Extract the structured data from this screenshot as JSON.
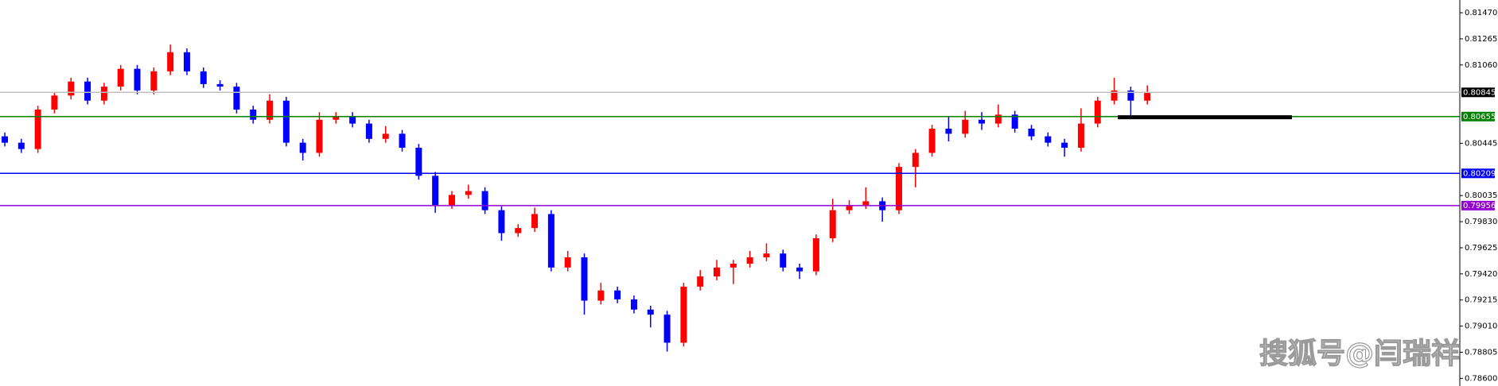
{
  "chart_data": {
    "type": "candlestick",
    "open": [
      0.805,
      0.8045,
      0.804,
      0.8071,
      0.8082,
      0.8093,
      0.8078,
      0.8089,
      0.8103,
      0.8086,
      0.8101,
      0.8116,
      0.8101,
      0.8091,
      0.8089,
      0.8071,
      0.8063,
      0.8078,
      0.8045,
      0.8037,
      0.8063,
      0.8066,
      0.806,
      0.8048,
      0.8052,
      0.8041,
      0.8019,
      0.7996,
      0.8004,
      0.8007,
      0.7992,
      0.7974,
      0.7978,
      0.7989,
      0.7947,
      0.7955,
      0.7921,
      0.7929,
      0.7922,
      0.7914,
      0.791,
      0.7888,
      0.7932,
      0.794,
      0.7947,
      0.795,
      0.7955,
      0.7958,
      0.7947,
      0.7944,
      0.797,
      0.7992,
      0.7996,
      0.7999,
      0.7992,
      0.8026,
      0.8037,
      0.8056,
      0.8052,
      0.8063,
      0.806,
      0.8067,
      0.8056,
      0.805,
      0.8045,
      0.8041,
      0.806,
      0.8078,
      0.8086,
      0.8078
    ],
    "high": [
      0.8053,
      0.8048,
      0.8074,
      0.8085,
      0.8096,
      0.8096,
      0.8092,
      0.8106,
      0.8106,
      0.8104,
      0.8122,
      0.8119,
      0.8104,
      0.8094,
      0.8092,
      0.8074,
      0.8083,
      0.8081,
      0.8048,
      0.8069,
      0.8069,
      0.8069,
      0.8063,
      0.8058,
      0.8055,
      0.8044,
      0.8022,
      0.8007,
      0.8012,
      0.801,
      0.7995,
      0.7981,
      0.7994,
      0.7992,
      0.796,
      0.7958,
      0.7935,
      0.7932,
      0.7925,
      0.7917,
      0.7913,
      0.7935,
      0.7945,
      0.7953,
      0.7953,
      0.796,
      0.7966,
      0.7961,
      0.795,
      0.7973,
      0.8001,
      0.8,
      0.801,
      0.8002,
      0.8029,
      0.804,
      0.8059,
      0.8066,
      0.807,
      0.8069,
      0.8075,
      0.807,
      0.8059,
      0.8053,
      0.8048,
      0.8072,
      0.8081,
      0.8096,
      0.8089,
      0.809
    ],
    "low": [
      0.8042,
      0.8037,
      0.8037,
      0.8068,
      0.8079,
      0.8075,
      0.8075,
      0.8086,
      0.8083,
      0.8083,
      0.8098,
      0.8098,
      0.8088,
      0.8086,
      0.8068,
      0.806,
      0.806,
      0.8042,
      0.8031,
      0.8034,
      0.806,
      0.8057,
      0.8045,
      0.8045,
      0.8038,
      0.8016,
      0.799,
      0.7993,
      0.8001,
      0.7989,
      0.7968,
      0.7971,
      0.7975,
      0.7944,
      0.7944,
      0.791,
      0.7918,
      0.7919,
      0.7911,
      0.79,
      0.7881,
      0.7885,
      0.7929,
      0.7937,
      0.7934,
      0.7947,
      0.7952,
      0.7944,
      0.7938,
      0.7941,
      0.7967,
      0.7989,
      0.7993,
      0.7983,
      0.7989,
      0.801,
      0.8034,
      0.8046,
      0.8049,
      0.8055,
      0.8057,
      0.8053,
      0.8047,
      0.8042,
      0.8034,
      0.8038,
      0.8057,
      0.8075,
      0.8066,
      0.8075
    ],
    "close": [
      0.8045,
      0.804,
      0.8071,
      0.8082,
      0.8093,
      0.8078,
      0.8089,
      0.8103,
      0.8086,
      0.8101,
      0.8116,
      0.8101,
      0.8091,
      0.8089,
      0.8071,
      0.8063,
      0.8078,
      0.8045,
      0.8037,
      0.8063,
      0.8066,
      0.806,
      0.8048,
      0.8052,
      0.8041,
      0.8019,
      0.7996,
      0.8004,
      0.8007,
      0.7992,
      0.7974,
      0.7978,
      0.7989,
      0.7947,
      0.7955,
      0.7921,
      0.7929,
      0.7922,
      0.7914,
      0.791,
      0.7888,
      0.7932,
      0.794,
      0.7947,
      0.795,
      0.7955,
      0.7958,
      0.7947,
      0.7944,
      0.797,
      0.7992,
      0.7996,
      0.7999,
      0.7992,
      0.8026,
      0.8037,
      0.8056,
      0.8052,
      0.8063,
      0.806,
      0.8067,
      0.8056,
      0.805,
      0.8045,
      0.8041,
      0.806,
      0.8078,
      0.8086,
      0.8078,
      0.8084
    ],
    "up_color": "#ff0000",
    "down_color": "#0000ff",
    "ylim": [
      0.7854,
      0.8157
    ],
    "yticks": [
      {
        "value": 0.8147,
        "label": "0.81470"
      },
      {
        "value": 0.81265,
        "label": "0.81265"
      },
      {
        "value": 0.8106,
        "label": "0.81060"
      },
      {
        "value": 0.80445,
        "label": "0.80445"
      },
      {
        "value": 0.80035,
        "label": "0.80035"
      },
      {
        "value": 0.7983,
        "label": "0.79830"
      },
      {
        "value": 0.79625,
        "label": "0.79625"
      },
      {
        "value": 0.7942,
        "label": "0.79420"
      },
      {
        "value": 0.79215,
        "label": "0.79215"
      },
      {
        "value": 0.7901,
        "label": "0.79010"
      },
      {
        "value": 0.78805,
        "label": "0.78805"
      },
      {
        "value": 0.786,
        "label": "0.78600"
      }
    ],
    "levels": [
      {
        "value": 0.80845,
        "label": "0.80845",
        "color": "#c0c0c0",
        "label_color": "#000000"
      },
      {
        "value": 0.80655,
        "label": "0.80655",
        "color": "#008000",
        "label_color": "#008000"
      },
      {
        "value": 0.80209,
        "label": "0.80209",
        "color": "#0000ff",
        "label_color": "#0000ff"
      },
      {
        "value": 0.79956,
        "label": "0.79956",
        "color": "#9400d3",
        "label_color": "#9400d3"
      }
    ],
    "segments": [
      {
        "value": 0.8065,
        "color": "#000000"
      }
    ],
    "watermark": "搜狐号@闫瑞祥"
  }
}
